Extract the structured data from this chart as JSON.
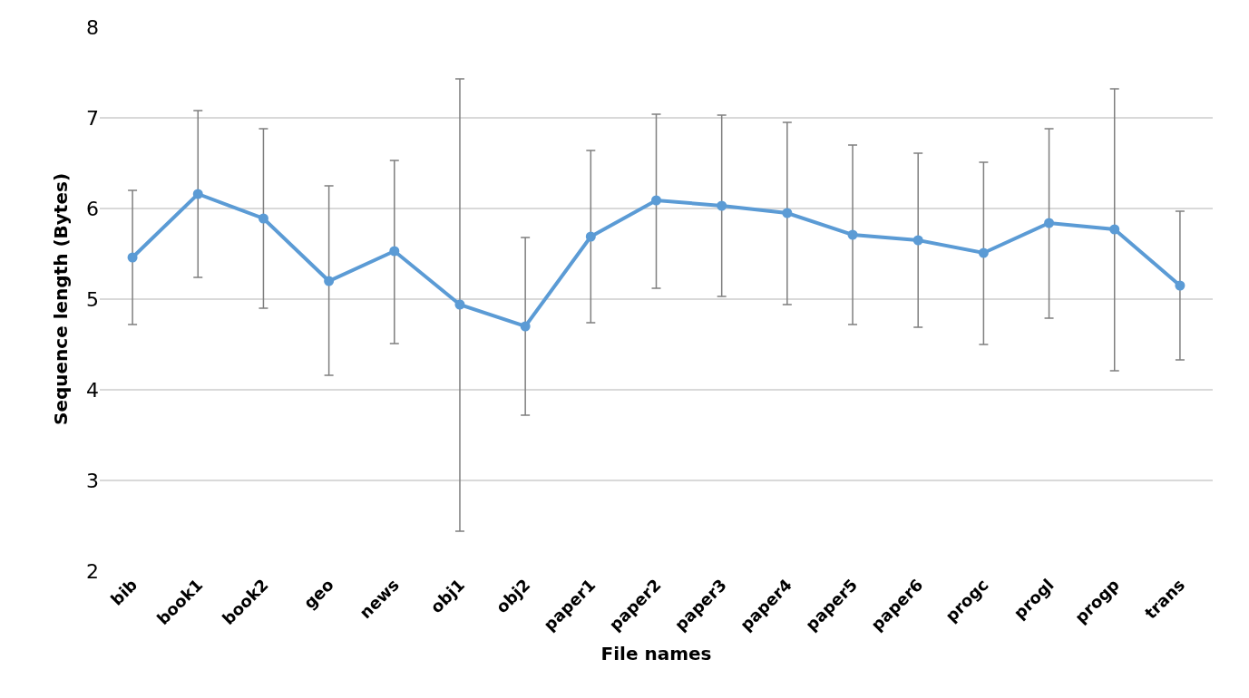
{
  "chart_data": {
    "type": "line",
    "xlabel": "File names",
    "ylabel": "Sequence length (Bytes)",
    "categories": [
      "bib",
      "book1",
      "book2",
      "geo",
      "news",
      "obj1",
      "obj2",
      "paper1",
      "paper2",
      "paper3",
      "paper4",
      "paper5",
      "paper6",
      "progc",
      "progl",
      "progp",
      "trans"
    ],
    "series": [
      {
        "color": "#5b9bd5",
        "values": [
          5.46,
          6.16,
          5.89,
          5.2,
          5.53,
          4.94,
          4.7,
          5.69,
          6.09,
          6.03,
          5.95,
          5.71,
          5.65,
          5.51,
          5.84,
          5.77,
          5.15
        ],
        "errors": [
          [
            4.72,
            6.2
          ],
          [
            5.24,
            7.08
          ],
          [
            4.9,
            6.88
          ],
          [
            4.16,
            6.25
          ],
          [
            4.51,
            6.53
          ],
          [
            2.44,
            7.43
          ],
          [
            3.72,
            5.68
          ],
          [
            4.74,
            6.64
          ],
          [
            5.12,
            7.04
          ],
          [
            5.03,
            7.03
          ],
          [
            4.94,
            6.95
          ],
          [
            4.72,
            6.7
          ],
          [
            4.69,
            6.61
          ],
          [
            4.5,
            6.51
          ],
          [
            4.79,
            6.88
          ],
          [
            4.21,
            7.32
          ],
          [
            4.33,
            5.97
          ]
        ]
      }
    ],
    "ylim": [
      2,
      8
    ],
    "yticks": [
      2,
      3,
      4,
      5,
      6,
      7,
      8
    ],
    "grid": "y",
    "marker": "circle",
    "line_style": "solid",
    "legend": false
  }
}
